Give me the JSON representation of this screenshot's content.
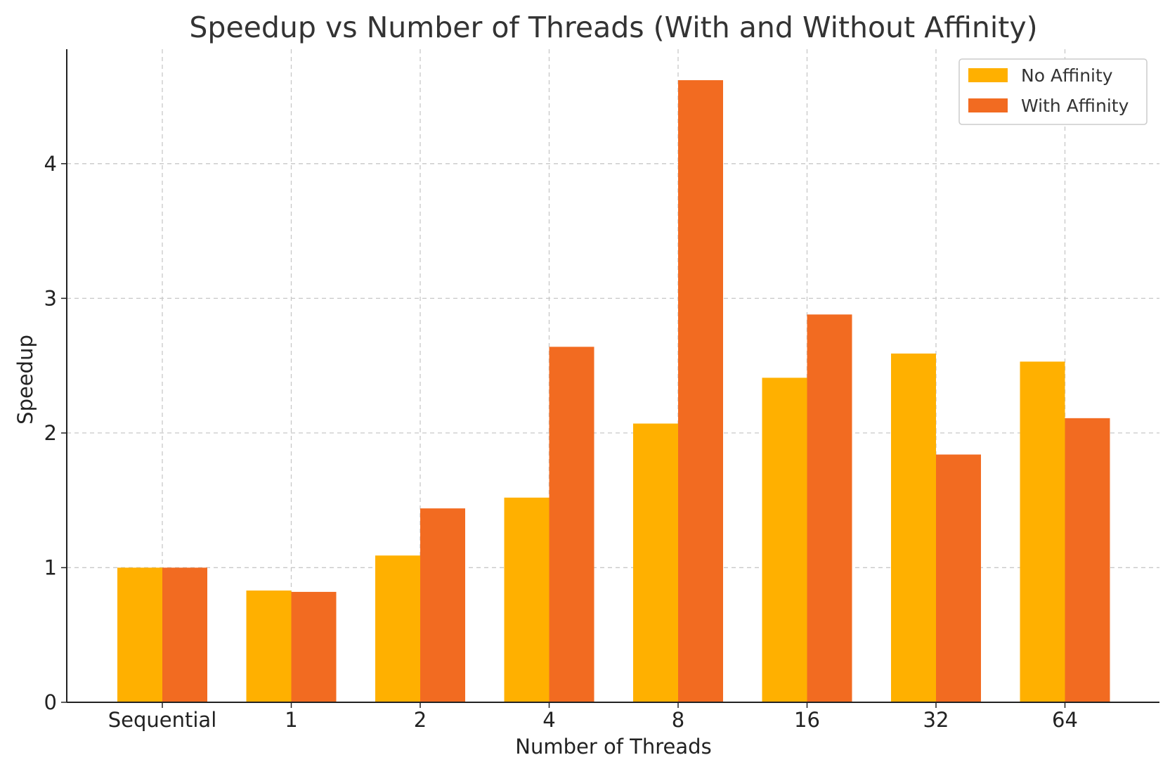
{
  "chart_data": {
    "type": "bar",
    "title": "Speedup vs Number of Threads (With and Without Affinity)",
    "xlabel": "Number of Threads",
    "ylabel": "Speedup",
    "categories": [
      "Sequential",
      "1",
      "2",
      "4",
      "8",
      "16",
      "32",
      "64"
    ],
    "series": [
      {
        "name": "No Affinity",
        "color": "#ffb000",
        "values": [
          1.0,
          0.83,
          1.09,
          1.52,
          2.07,
          2.41,
          2.59,
          2.53
        ]
      },
      {
        "name": "With Affinity",
        "color": "#f26b21",
        "values": [
          1.0,
          0.82,
          1.44,
          2.64,
          4.62,
          2.88,
          1.84,
          2.11
        ]
      }
    ],
    "ylim": [
      0,
      4.85
    ],
    "yticks": [
      0,
      1,
      2,
      3,
      4
    ],
    "grid": true,
    "legend_position": "top-right"
  }
}
